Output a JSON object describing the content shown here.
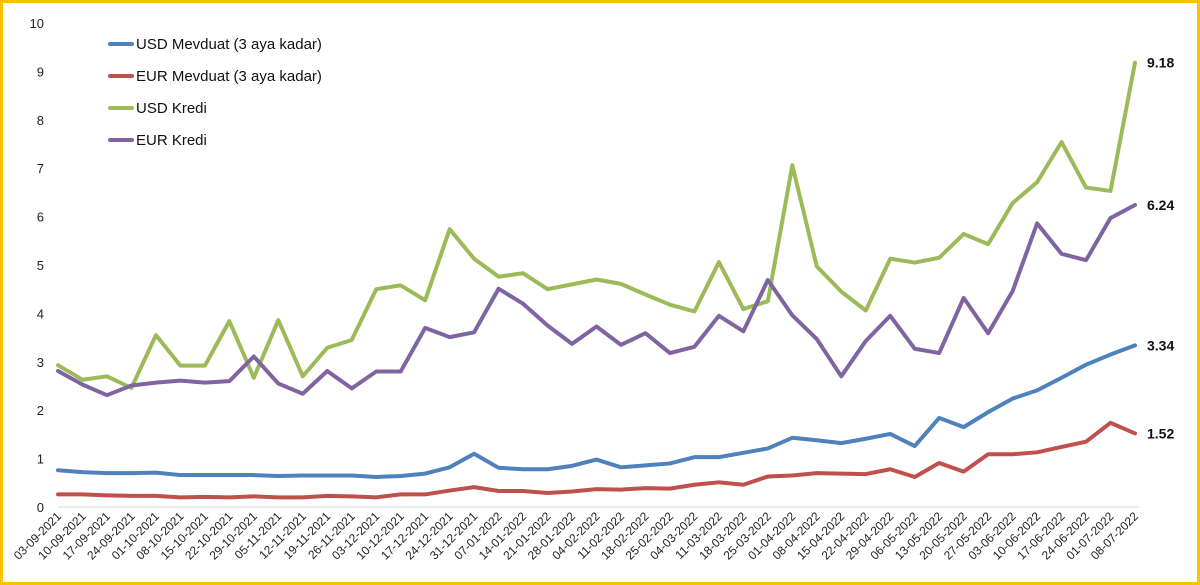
{
  "chart_data": {
    "type": "line",
    "title": "",
    "xlabel": "",
    "ylabel": "",
    "ylim": [
      0,
      10
    ],
    "yticks": [
      0,
      1,
      2,
      3,
      4,
      5,
      6,
      7,
      8,
      9,
      10
    ],
    "grid": false,
    "legend_position": "top-left",
    "categories": [
      "03-09-2021",
      "10-09-2021",
      "17-09-2021",
      "24-09-2021",
      "01-10-2021",
      "08-10-2021",
      "15-10-2021",
      "22-10-2021",
      "29-10-2021",
      "05-11-2021",
      "12-11-2021",
      "19-11-2021",
      "26-11-2021",
      "03-12-2021",
      "10-12-2021",
      "17-12-2021",
      "24-12-2021",
      "31-12-2021",
      "07-01-2022",
      "14-01-2022",
      "21-01-2022",
      "28-01-2022",
      "04-02-2022",
      "11-02-2022",
      "18-02-2022",
      "25-02-2022",
      "04-03-2022",
      "11-03-2022",
      "18-03-2022",
      "25-03-2022",
      "01-04-2022",
      "08-04-2022",
      "15-04-2022",
      "22-04-2022",
      "29-04-2022",
      "06-05-2022",
      "13-05-2022",
      "20-05-2022",
      "27-05-2022",
      "03-06-2022",
      "10-06-2022",
      "17-06-2022",
      "24-06-2022",
      "01-07-2022",
      "08-07-2022"
    ],
    "series": [
      {
        "name": "USD Mevduat (3 aya kadar)",
        "color": "#4F81BD",
        "end_label": "3.34",
        "values": [
          0.76,
          0.72,
          0.7,
          0.7,
          0.71,
          0.66,
          0.66,
          0.66,
          0.66,
          0.64,
          0.65,
          0.65,
          0.65,
          0.62,
          0.64,
          0.69,
          0.82,
          1.1,
          0.81,
          0.78,
          0.78,
          0.85,
          0.98,
          0.82,
          0.86,
          0.9,
          1.03,
          1.03,
          1.12,
          1.21,
          1.43,
          1.38,
          1.32,
          1.41,
          1.51,
          1.26,
          1.84,
          1.65,
          1.96,
          2.24,
          2.41,
          2.67,
          2.94,
          3.15,
          3.34
        ]
      },
      {
        "name": "EUR Mevduat (3 aya kadar)",
        "color": "#C0504D",
        "end_label": "1.52",
        "values": [
          0.26,
          0.26,
          0.24,
          0.23,
          0.23,
          0.2,
          0.21,
          0.2,
          0.22,
          0.2,
          0.2,
          0.23,
          0.22,
          0.2,
          0.26,
          0.26,
          0.34,
          0.41,
          0.33,
          0.33,
          0.29,
          0.32,
          0.37,
          0.36,
          0.39,
          0.38,
          0.46,
          0.51,
          0.46,
          0.63,
          0.65,
          0.7,
          0.69,
          0.68,
          0.78,
          0.62,
          0.91,
          0.73,
          1.09,
          1.09,
          1.13,
          1.24,
          1.35,
          1.74,
          1.52
        ]
      },
      {
        "name": "USD Kredi",
        "color": "#9BBB59",
        "end_label": "9.18",
        "values": [
          2.93,
          2.63,
          2.7,
          2.46,
          3.55,
          2.92,
          2.92,
          3.84,
          2.67,
          3.86,
          2.7,
          3.29,
          3.45,
          4.5,
          4.58,
          4.27,
          5.74,
          5.13,
          4.76,
          4.83,
          4.5,
          4.6,
          4.7,
          4.61,
          4.39,
          4.18,
          4.04,
          5.06,
          4.09,
          4.25,
          7.06,
          4.97,
          4.45,
          4.06,
          5.13,
          5.05,
          5.15,
          5.64,
          5.43,
          6.28,
          6.71,
          7.54,
          6.6,
          6.53,
          9.18
        ]
      },
      {
        "name": "EUR Kredi",
        "color": "#8064A2",
        "end_label": "6.24",
        "values": [
          2.81,
          2.53,
          2.31,
          2.51,
          2.57,
          2.61,
          2.57,
          2.6,
          3.11,
          2.55,
          2.34,
          2.81,
          2.45,
          2.8,
          2.8,
          3.7,
          3.51,
          3.61,
          4.51,
          4.2,
          3.75,
          3.37,
          3.73,
          3.35,
          3.59,
          3.18,
          3.31,
          3.95,
          3.63,
          4.69,
          3.96,
          3.47,
          2.7,
          3.43,
          3.95,
          3.27,
          3.18,
          4.32,
          3.59,
          4.46,
          5.86,
          5.23,
          5.1,
          5.97,
          6.24
        ]
      }
    ]
  }
}
